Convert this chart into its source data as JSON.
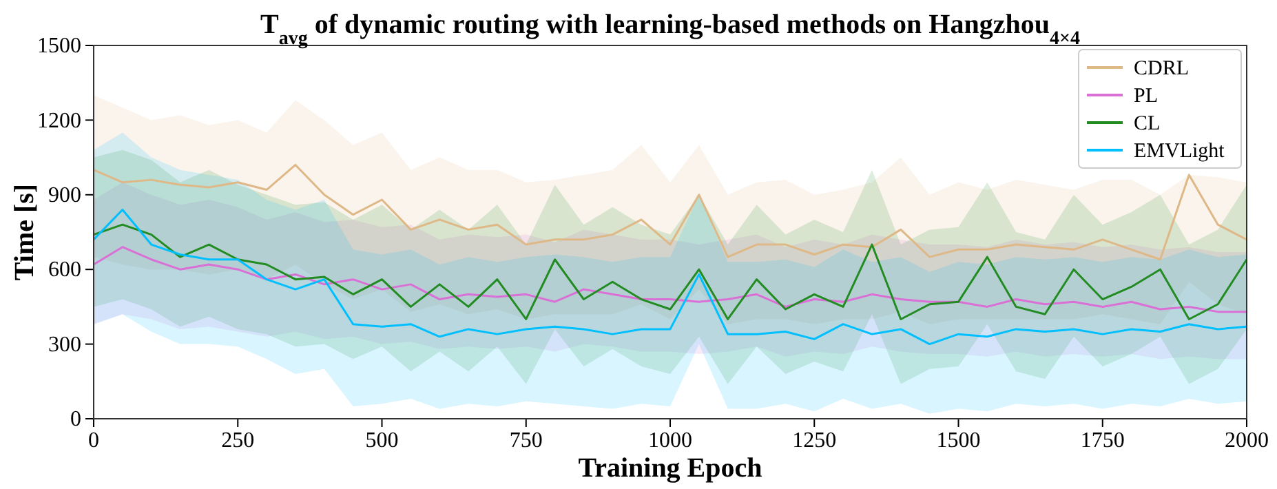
{
  "chart_data": {
    "type": "line",
    "title": "T$_{avg}$ of dynamic routing with learning-based methods on Hangzhou$_{4×4}$",
    "xlabel": "Training Epoch",
    "ylabel": "Time [s]",
    "x": [
      0,
      50,
      100,
      150,
      200,
      250,
      300,
      350,
      400,
      450,
      500,
      550,
      600,
      650,
      700,
      750,
      800,
      850,
      900,
      950,
      1000,
      1050,
      1100,
      1150,
      1200,
      1250,
      1300,
      1350,
      1400,
      1450,
      1500,
      1550,
      1600,
      1650,
      1700,
      1750,
      1800,
      1850,
      1900,
      1950,
      2000
    ],
    "xlim": [
      0,
      2000
    ],
    "xticks": [
      0,
      250,
      500,
      750,
      1000,
      1250,
      1500,
      1750,
      2000
    ],
    "ylim": [
      0,
      1500
    ],
    "yticks": [
      0,
      300,
      600,
      900,
      1200,
      1500
    ],
    "grid": false,
    "legend": "top right",
    "line_style": "solid",
    "marker": "none",
    "series": [
      {
        "name": "CDRL",
        "color": "#deb887",
        "values": [
          1000,
          950,
          960,
          940,
          930,
          950,
          920,
          1020,
          900,
          820,
          880,
          760,
          800,
          760,
          780,
          700,
          720,
          720,
          740,
          800,
          700,
          900,
          650,
          700,
          700,
          660,
          700,
          690,
          760,
          650,
          680,
          680,
          700,
          690,
          680,
          720,
          680,
          640,
          980,
          780,
          720
        ],
        "upper": [
          1300,
          1250,
          1200,
          1220,
          1180,
          1200,
          1150,
          1280,
          1200,
          1100,
          1150,
          1000,
          1050,
          1000,
          1000,
          950,
          960,
          980,
          1000,
          1100,
          950,
          1100,
          900,
          950,
          960,
          900,
          920,
          950,
          1050,
          900,
          950,
          920,
          960,
          940,
          920,
          960,
          960,
          900,
          980,
          970,
          950
        ],
        "lower": [
          650,
          620,
          600,
          600,
          580,
          600,
          560,
          620,
          540,
          480,
          520,
          430,
          460,
          420,
          440,
          400,
          420,
          420,
          420,
          460,
          400,
          520,
          380,
          400,
          400,
          380,
          400,
          400,
          430,
          380,
          400,
          400,
          400,
          400,
          400,
          420,
          400,
          380,
          550,
          460,
          420
        ]
      },
      {
        "name": "PL",
        "color": "#da70d6",
        "values": [
          620,
          690,
          640,
          600,
          620,
          600,
          560,
          580,
          540,
          560,
          520,
          540,
          480,
          500,
          490,
          500,
          470,
          520,
          500,
          480,
          480,
          470,
          480,
          500,
          450,
          480,
          470,
          500,
          480,
          470,
          470,
          450,
          480,
          460,
          470,
          450,
          470,
          440,
          450,
          430,
          430
        ],
        "upper": [
          880,
          950,
          900,
          860,
          880,
          850,
          800,
          830,
          790,
          800,
          770,
          780,
          720,
          740,
          730,
          740,
          710,
          760,
          740,
          720,
          720,
          700,
          720,
          740,
          690,
          720,
          700,
          740,
          720,
          700,
          700,
          690,
          720,
          700,
          710,
          690,
          700,
          680,
          690,
          670,
          670
        ],
        "lower": [
          380,
          420,
          400,
          360,
          370,
          350,
          330,
          350,
          320,
          330,
          300,
          310,
          280,
          290,
          280,
          290,
          270,
          300,
          290,
          270,
          270,
          260,
          270,
          290,
          250,
          270,
          260,
          290,
          270,
          260,
          260,
          250,
          270,
          250,
          260,
          250,
          260,
          240,
          250,
          240,
          240
        ]
      },
      {
        "name": "CL",
        "color": "#228b22",
        "values": [
          740,
          780,
          740,
          650,
          700,
          640,
          620,
          560,
          570,
          500,
          560,
          450,
          540,
          450,
          560,
          400,
          640,
          480,
          550,
          480,
          440,
          600,
          400,
          560,
          440,
          500,
          450,
          700,
          400,
          460,
          470,
          650,
          450,
          420,
          600,
          480,
          530,
          600,
          400,
          460,
          640
        ],
        "upper": [
          1050,
          1080,
          1040,
          950,
          1000,
          940,
          900,
          860,
          870,
          800,
          860,
          760,
          840,
          760,
          860,
          700,
          940,
          780,
          850,
          780,
          740,
          900,
          700,
          860,
          740,
          800,
          750,
          1000,
          700,
          760,
          770,
          950,
          750,
          720,
          900,
          780,
          830,
          900,
          700,
          760,
          940
        ],
        "lower": [
          450,
          480,
          440,
          370,
          410,
          360,
          340,
          290,
          300,
          240,
          290,
          190,
          270,
          190,
          290,
          140,
          360,
          210,
          280,
          210,
          180,
          330,
          140,
          290,
          180,
          230,
          190,
          420,
          140,
          200,
          210,
          380,
          190,
          160,
          330,
          210,
          260,
          330,
          140,
          200,
          360
        ]
      },
      {
        "name": "EMVLight",
        "color": "#00bfff",
        "values": [
          720,
          840,
          700,
          660,
          640,
          640,
          560,
          520,
          560,
          380,
          370,
          380,
          330,
          360,
          340,
          360,
          370,
          360,
          340,
          360,
          360,
          580,
          340,
          340,
          350,
          320,
          380,
          340,
          360,
          300,
          340,
          330,
          360,
          350,
          360,
          340,
          360,
          350,
          380,
          360,
          370
        ],
        "upper": [
          1080,
          1150,
          1050,
          1000,
          980,
          960,
          880,
          840,
          880,
          680,
          660,
          680,
          620,
          650,
          630,
          650,
          660,
          650,
          630,
          650,
          650,
          900,
          630,
          630,
          640,
          610,
          680,
          630,
          650,
          590,
          630,
          620,
          650,
          640,
          650,
          630,
          650,
          640,
          680,
          650,
          660
        ],
        "lower": [
          380,
          420,
          350,
          300,
          300,
          290,
          240,
          180,
          200,
          50,
          60,
          80,
          40,
          60,
          50,
          70,
          60,
          50,
          40,
          60,
          50,
          300,
          40,
          40,
          60,
          30,
          80,
          40,
          60,
          20,
          40,
          30,
          60,
          50,
          60,
          40,
          60,
          50,
          80,
          60,
          70
        ]
      }
    ]
  }
}
